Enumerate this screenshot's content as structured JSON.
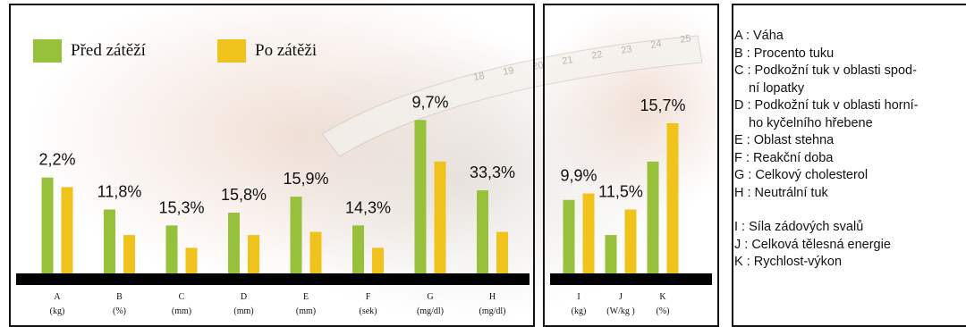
{
  "colors": {
    "before": "#97c03b",
    "after": "#f0c21c",
    "axis": "#000000",
    "photo_skin": "#e9cfc0"
  },
  "legend": {
    "before": "Před zátěží",
    "after": "Po zátěži"
  },
  "chart_data": [
    {
      "type": "bar",
      "categories": [
        "A",
        "B",
        "C",
        "D",
        "E",
        "F",
        "G",
        "H"
      ],
      "units": [
        "(kg)",
        "(%)",
        "(mm)",
        "(mm)",
        "(mm)",
        "(sek)",
        "(mg/dl)",
        "(mg/dl)"
      ],
      "series": [
        {
          "name": "Před zátěží",
          "values": [
            30,
            20,
            15,
            19,
            24,
            15,
            48,
            26
          ]
        },
        {
          "name": "Po zátěži",
          "values": [
            27,
            12,
            8,
            12,
            13,
            8,
            35,
            13
          ]
        }
      ],
      "change_labels": [
        "2,2%",
        "11,8%",
        "15,3%",
        "15,8%",
        "15,9%",
        "14,3%",
        "9,7%",
        "33,3%"
      ],
      "ylim": [
        0,
        52
      ],
      "xlabel": "",
      "ylabel": "",
      "title": ""
    },
    {
      "type": "bar",
      "categories": [
        "I",
        "J",
        "K"
      ],
      "units": [
        "(kg)",
        "(W/kg )",
        "(%)"
      ],
      "series": [
        {
          "name": "Před zátěží",
          "values": [
            23,
            12,
            35
          ]
        },
        {
          "name": "Po zátěži",
          "values": [
            25,
            20,
            47
          ]
        }
      ],
      "change_labels": [
        "9,9%",
        "11,5%",
        "15,7%"
      ],
      "ylim": [
        0,
        52
      ],
      "xlabel": "",
      "ylabel": "",
      "title": ""
    }
  ],
  "key": [
    "A : Váha",
    "B : Procento tuku",
    "C : Podkožní tuk v oblasti spod-ní lopatky",
    "D : Podkožní tuk v oblasti horní-ho kyčelního hřebene",
    "E : Oblast stehna",
    "F : Reakční doba",
    "G : Celkový cholesterol",
    "H : Neutrální tuk",
    "I : Síla zádových svalů",
    "J : Celková tělesná energie",
    "K : Rychlost-výkon"
  ],
  "key_display": [
    [
      "A : Váha"
    ],
    [
      "B : Procento tuku"
    ],
    [
      "C : Podkožní tuk v oblasti spod-",
      "ní lopatky"
    ],
    [
      "D : Podkožní tuk v oblasti horní-",
      "ho kyčelního hřebene"
    ],
    [
      "E : Oblast stehna"
    ],
    [
      "F : Reakční doba"
    ],
    [
      "G : Celkový cholesterol"
    ],
    [
      "H : Neutrální tuk"
    ],
    [
      " I : Síla zádových svalů"
    ],
    [
      "J : Celková tělesná energie"
    ],
    [
      "K : Rychlost-výkon"
    ]
  ],
  "tape_numbers": [
    "18",
    "19",
    "20",
    "21",
    "22",
    "23",
    "24",
    "25"
  ]
}
